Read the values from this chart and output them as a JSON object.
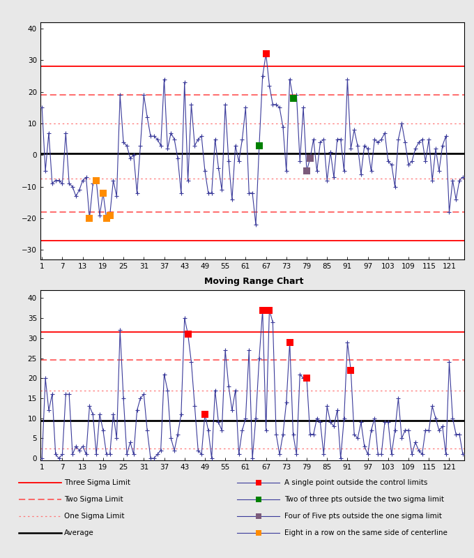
{
  "title2": "Moving Range Chart",
  "n_points": 125,
  "avg": 0.5,
  "ucl": 28.0,
  "lcl": -27.0,
  "two_sigma_upper": 19.0,
  "two_sigma_lower": -18.0,
  "one_sigma_upper": 10.0,
  "one_sigma_lower": -7.5,
  "mr_avg": 9.5,
  "mr_ucl": 31.5,
  "mr_two_sigma": 24.5,
  "mr_one_sigma": 17.0,
  "mr_lcl": 2.5,
  "x_ticks": [
    1,
    7,
    13,
    19,
    25,
    31,
    37,
    43,
    49,
    55,
    61,
    67,
    73,
    79,
    85,
    91,
    97,
    103,
    109,
    115,
    121
  ],
  "line_color": "#3A3A9A",
  "red_marker": "#FF0000",
  "green_marker": "#008000",
  "purple_marker": "#7B5B7B",
  "orange_marker": "#FF8C00",
  "three_sigma_color": "#FF0000",
  "two_sigma_color": "#FF4444",
  "one_sigma_color": "#FF7777",
  "avg_color": "#000000",
  "indiv_data": [
    15,
    -5,
    7,
    -9,
    -8,
    -8,
    -9,
    7,
    -9,
    -10,
    -13,
    -11,
    -8,
    -7,
    -20,
    -9,
    -8,
    -19,
    -12,
    -20,
    -19,
    -8,
    -13,
    19,
    4,
    3,
    -1,
    0,
    -12,
    3,
    19,
    12,
    6,
    6,
    5,
    3,
    24,
    2,
    7,
    5,
    -1,
    -12,
    23,
    -8,
    16,
    3,
    5,
    6,
    -5,
    -12,
    -12,
    5,
    -4,
    -11,
    16,
    -2,
    -14,
    3,
    -2,
    5,
    15,
    -12,
    -12,
    -22,
    3,
    25,
    32,
    22,
    16,
    16,
    15,
    9,
    -5,
    24,
    18,
    19,
    -2,
    15,
    -5,
    -1,
    5,
    -5,
    4,
    5,
    -8,
    1,
    -7,
    5,
    5,
    -5,
    24,
    2,
    8,
    3,
    -6,
    3,
    2,
    -5,
    5,
    4,
    5,
    7,
    -2,
    -3,
    -10,
    5,
    10,
    4,
    -3,
    -2,
    2,
    4,
    5,
    -2,
    5,
    -8,
    2,
    -5,
    3,
    6,
    -18,
    -8,
    -14,
    -8,
    -7
  ],
  "mr_data": [
    0,
    20,
    12,
    16,
    1,
    0,
    1,
    16,
    16,
    1,
    3,
    2,
    3,
    1,
    13,
    11,
    1,
    11,
    7,
    1,
    1,
    11,
    5,
    32,
    15,
    1,
    4,
    1,
    12,
    15,
    16,
    7,
    0,
    0,
    1,
    2,
    21,
    17,
    5,
    2,
    6,
    11,
    35,
    31,
    24,
    13,
    2,
    1,
    11,
    7,
    0,
    17,
    9,
    7,
    27,
    18,
    12,
    17,
    1,
    7,
    10,
    27,
    0,
    10,
    25,
    37,
    7,
    37,
    34,
    6,
    1,
    6,
    14,
    29,
    6,
    1,
    21,
    20,
    20,
    6,
    6,
    10,
    9,
    1,
    13,
    9,
    8,
    12,
    0,
    10,
    29,
    22,
    6,
    5,
    9,
    3,
    1,
    7,
    10,
    1,
    1,
    9,
    9,
    1,
    7,
    15,
    5,
    7,
    7,
    1,
    4,
    2,
    1,
    7,
    7,
    13,
    10,
    7,
    8,
    1,
    24,
    10,
    6,
    6,
    1
  ],
  "red_pts_indiv": [
    67
  ],
  "green_pts_indiv": [
    65,
    75
  ],
  "purple_pts_indiv": [
    79,
    80
  ],
  "orange_pts_indiv": [
    15,
    17,
    19,
    20,
    21
  ],
  "red_pts_mr": [
    44,
    49,
    66,
    68,
    74,
    79,
    92
  ],
  "green_pts_mr": [],
  "purple_pts_mr": [],
  "orange_pts_mr": []
}
